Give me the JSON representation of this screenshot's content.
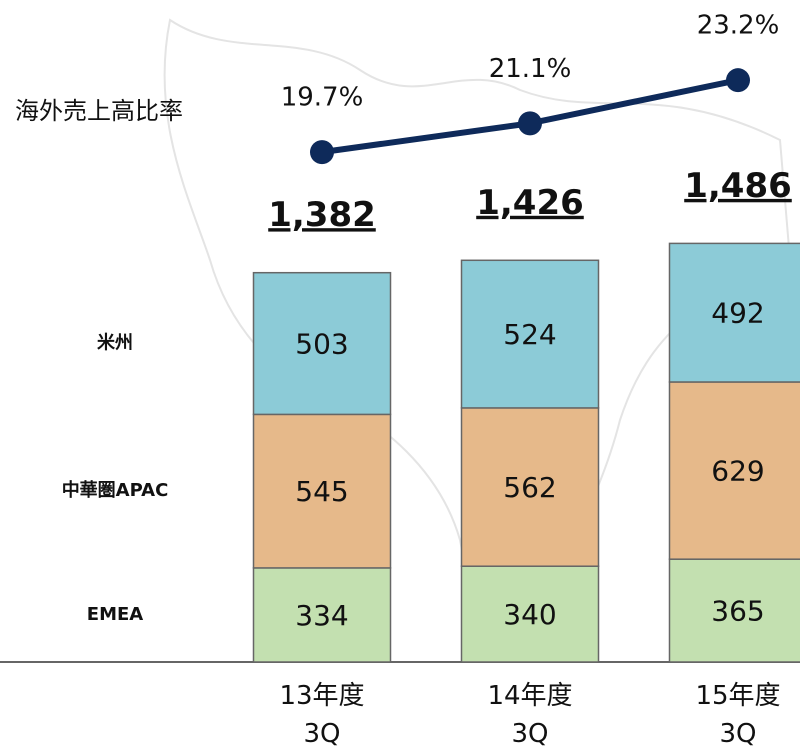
{
  "chart_data": {
    "type": "bar",
    "stacked": true,
    "categories": [
      "13年度\n3Q",
      "14年度\n3Q",
      "15年度\n3Q"
    ],
    "ylim": [
      0,
      2350
    ],
    "y2lim": [
      -5.1,
      27.1
    ],
    "series": [
      {
        "name": "EMEA",
        "color": "#c3e0b0",
        "values": [
          334,
          340,
          365
        ]
      },
      {
        "name": "中華圏APAC",
        "color": "#e6b98a",
        "values": [
          545,
          562,
          629
        ]
      },
      {
        "name": "米州",
        "color": "#8ccbd7",
        "values": [
          503,
          524,
          492
        ]
      },
      {
        "name": "海外売上高比率",
        "type": "line",
        "axis": "y2",
        "color": "#0e2a5a",
        "values": [
          19.7,
          21.1,
          23.2
        ],
        "value_labels": [
          "19.7%",
          "21.1%",
          "23.2%"
        ]
      }
    ],
    "totals": {
      "values": [
        1382,
        1426,
        1486
      ],
      "value_labels": [
        "1,382",
        "1,426",
        "1,486"
      ]
    }
  }
}
